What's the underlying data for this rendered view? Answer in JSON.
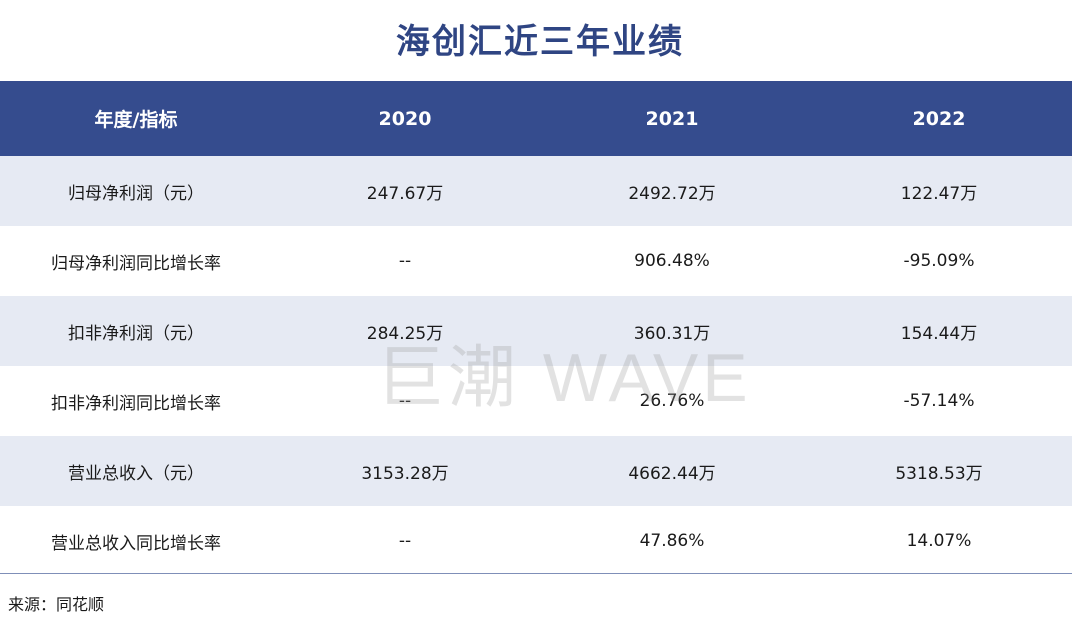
{
  "title": "海创汇近三年业绩",
  "table": {
    "headers": [
      "年度/指标",
      "2020",
      "2021",
      "2022"
    ],
    "rows": [
      [
        "归母净利润（元）",
        "247.67万",
        "2492.72万",
        "122.47万"
      ],
      [
        "归母净利润同比增长率",
        "--",
        "906.48%",
        "-95.09%"
      ],
      [
        "扣非净利润（元）",
        "284.25万",
        "360.31万",
        "154.44万"
      ],
      [
        "扣非净利润同比增长率",
        "--",
        "26.76%",
        "-57.14%"
      ],
      [
        "营业总收入（元）",
        "3153.28万",
        "4662.44万",
        "5318.53万"
      ],
      [
        "营业总收入同比增长率",
        "--",
        "47.86%",
        "14.07%"
      ]
    ]
  },
  "source": "来源：同花顺",
  "watermark": "巨潮 WAVE",
  "colors": {
    "header_bg": "#354c8e",
    "title": "#2f4583",
    "row_shade": "#e6eaf3"
  }
}
